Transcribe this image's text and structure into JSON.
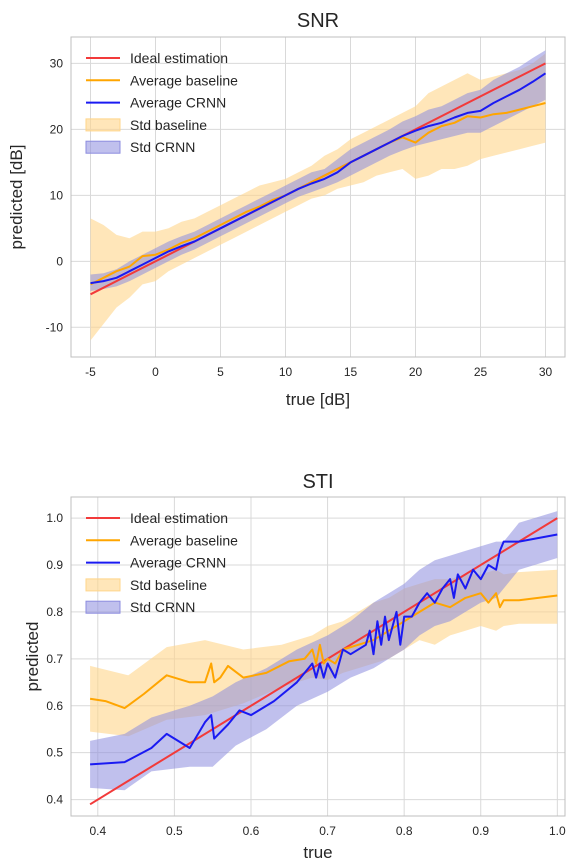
{
  "chart_data": [
    {
      "type": "line",
      "title": "SNR",
      "xlabel": "true [dB]",
      "ylabel": "predicted [dB]",
      "xlim": [
        -6.5,
        31.5
      ],
      "ylim": [
        -14.5,
        34
      ],
      "xticks": [
        -5,
        0,
        5,
        10,
        15,
        20,
        25,
        30
      ],
      "yticks": [
        -10,
        0,
        10,
        20,
        30
      ],
      "grid": true,
      "legend_position": "top-left",
      "colors": {
        "ideal": "#f23a3a",
        "baseline": "#ffa500",
        "crnn": "#1a1af2",
        "std_baseline": "#ffd58a",
        "std_crnn": "#8c8cdf"
      },
      "series": [
        {
          "name": "Ideal estimation",
          "kind": "line",
          "color": "#f23a3a",
          "x": [
            -5,
            30
          ],
          "y": [
            -5,
            30
          ]
        },
        {
          "name": "Average baseline",
          "kind": "line",
          "color": "#ffa500",
          "x": [
            -5,
            -4,
            -3,
            -2,
            -1,
            0,
            1,
            2,
            3,
            4,
            5,
            6,
            7,
            8,
            9,
            10,
            11,
            12,
            13,
            14,
            15,
            16,
            17,
            18,
            19,
            20,
            21,
            22,
            23,
            24,
            25,
            26,
            27,
            28,
            29,
            30
          ],
          "y": [
            -3.5,
            -2.5,
            -1.5,
            -0.8,
            0.8,
            1.0,
            1.8,
            2.8,
            3.5,
            4.5,
            5.5,
            6.5,
            7.5,
            8.3,
            9.3,
            10.0,
            11.0,
            12.0,
            13.0,
            14.0,
            15.0,
            16.0,
            17.0,
            18.0,
            18.8,
            18.0,
            19.5,
            20.5,
            21.0,
            22.0,
            21.8,
            22.3,
            22.5,
            23.0,
            23.5,
            24.0
          ]
        },
        {
          "name": "Average CRNN",
          "kind": "line",
          "color": "#1a1af2",
          "x": [
            -5,
            -4,
            -3,
            -2,
            -1,
            0,
            1,
            2,
            3,
            4,
            5,
            6,
            7,
            8,
            9,
            10,
            11,
            12,
            13,
            14,
            15,
            16,
            17,
            18,
            19,
            20,
            21,
            22,
            23,
            24,
            25,
            26,
            27,
            28,
            29,
            30
          ],
          "y": [
            -3.3,
            -3.0,
            -2.5,
            -1.5,
            -0.5,
            0.5,
            1.5,
            2.3,
            3.0,
            4.0,
            5.0,
            6.0,
            7.0,
            8.0,
            9.0,
            10.0,
            11.0,
            11.8,
            12.5,
            13.5,
            15.0,
            16.0,
            17.0,
            18.0,
            19.0,
            19.8,
            20.5,
            21.0,
            21.8,
            22.5,
            22.8,
            24.0,
            25.0,
            26.0,
            27.2,
            28.5
          ]
        },
        {
          "name": "Std baseline",
          "kind": "band",
          "color": "#ffd58a",
          "x": [
            -5,
            -4,
            -3,
            -2,
            -1,
            0,
            1,
            2,
            3,
            4,
            5,
            6,
            7,
            8,
            9,
            10,
            11,
            12,
            13,
            14,
            15,
            16,
            17,
            18,
            19,
            20,
            21,
            22,
            23,
            24,
            25,
            26,
            27,
            28,
            29,
            30
          ],
          "lower": [
            -12.0,
            -9.5,
            -7.0,
            -5.5,
            -3.5,
            -3.0,
            -1.5,
            -0.5,
            0.5,
            1.5,
            2.5,
            3.5,
            4.5,
            5.5,
            6.5,
            7.5,
            8.5,
            9.5,
            10.0,
            11.0,
            11.5,
            12.0,
            13.0,
            13.5,
            14.0,
            12.5,
            13.0,
            14.0,
            14.0,
            14.5,
            15.5,
            16.0,
            16.5,
            17.0,
            17.5,
            18.0
          ],
          "upper": [
            6.5,
            5.5,
            4.0,
            3.5,
            4.5,
            4.5,
            5.0,
            6.0,
            6.5,
            7.5,
            8.5,
            9.5,
            10.5,
            11.5,
            12.0,
            12.5,
            13.5,
            14.5,
            16.0,
            17.0,
            18.5,
            19.5,
            20.5,
            21.5,
            22.5,
            23.5,
            25.5,
            26.5,
            27.5,
            28.5,
            27.5,
            28.0,
            28.5,
            29.0,
            30.0,
            31.5
          ]
        },
        {
          "name": "Std CRNN",
          "kind": "band",
          "color": "#8c8cdf",
          "x": [
            -5,
            -4,
            -3,
            -2,
            -1,
            0,
            1,
            2,
            3,
            4,
            5,
            6,
            7,
            8,
            9,
            10,
            11,
            12,
            13,
            14,
            15,
            16,
            17,
            18,
            19,
            20,
            21,
            22,
            23,
            24,
            25,
            26,
            27,
            28,
            29,
            30
          ],
          "lower": [
            -4.5,
            -4.2,
            -3.8,
            -3.0,
            -2.0,
            -1.0,
            0.0,
            1.0,
            1.8,
            2.8,
            3.8,
            4.8,
            5.8,
            6.8,
            7.8,
            8.8,
            9.8,
            10.5,
            11.2,
            12.0,
            13.0,
            14.0,
            15.0,
            16.0,
            16.8,
            17.5,
            18.0,
            18.5,
            19.0,
            19.5,
            19.5,
            20.5,
            21.5,
            22.5,
            23.5,
            24.5
          ],
          "upper": [
            -2.0,
            -1.8,
            -1.2,
            0.0,
            1.0,
            2.0,
            3.0,
            3.8,
            4.5,
            5.5,
            6.5,
            7.5,
            8.5,
            9.5,
            10.5,
            11.5,
            12.5,
            13.5,
            14.0,
            15.5,
            17.0,
            18.0,
            19.0,
            20.0,
            21.2,
            22.0,
            23.0,
            23.5,
            24.5,
            25.5,
            26.0,
            27.5,
            28.5,
            29.5,
            30.8,
            32.0
          ]
        }
      ]
    },
    {
      "type": "line",
      "title": "STI",
      "xlabel": "true",
      "ylabel": "predicted",
      "xlim": [
        0.365,
        1.01
      ],
      "ylim": [
        0.365,
        1.045
      ],
      "xticks": [
        0.4,
        0.5,
        0.6,
        0.7,
        0.8,
        0.9,
        1.0
      ],
      "xtick_labels": [
        "0.4",
        "0.5",
        "0.6",
        "0.7",
        "0.8",
        "0.9",
        "1.0"
      ],
      "yticks": [
        0.4,
        0.5,
        0.6,
        0.7,
        0.8,
        0.9,
        1.0
      ],
      "ytick_labels": [
        "0.4",
        "0.5",
        "0.6",
        "0.7",
        "0.8",
        "0.9",
        "1.0"
      ],
      "grid": true,
      "legend_position": "top-left",
      "colors": {
        "ideal": "#f23a3a",
        "baseline": "#ffa500",
        "crnn": "#1a1af2",
        "std_baseline": "#ffd58a",
        "std_crnn": "#8c8cdf"
      },
      "series": [
        {
          "name": "Ideal estimation",
          "kind": "line",
          "color": "#f23a3a",
          "x": [
            0.39,
            1.0
          ],
          "y": [
            0.39,
            1.0
          ]
        },
        {
          "name": "Average baseline",
          "kind": "line",
          "color": "#ffa500",
          "x": [
            0.39,
            0.41,
            0.435,
            0.46,
            0.49,
            0.52,
            0.54,
            0.548,
            0.552,
            0.56,
            0.57,
            0.59,
            0.62,
            0.65,
            0.67,
            0.68,
            0.685,
            0.69,
            0.695,
            0.7,
            0.71,
            0.72,
            0.74,
            0.76,
            0.78,
            0.8,
            0.82,
            0.84,
            0.86,
            0.88,
            0.9,
            0.91,
            0.92,
            0.925,
            0.93,
            0.95,
            1.0
          ],
          "y": [
            0.615,
            0.61,
            0.595,
            0.625,
            0.665,
            0.65,
            0.65,
            0.69,
            0.65,
            0.66,
            0.685,
            0.66,
            0.67,
            0.695,
            0.7,
            0.72,
            0.69,
            0.73,
            0.69,
            0.7,
            0.69,
            0.72,
            0.73,
            0.74,
            0.76,
            0.78,
            0.8,
            0.82,
            0.81,
            0.83,
            0.84,
            0.82,
            0.84,
            0.81,
            0.825,
            0.825,
            0.835
          ]
        },
        {
          "name": "Average CRNN",
          "kind": "line",
          "color": "#1a1af2",
          "x": [
            0.39,
            0.435,
            0.47,
            0.49,
            0.52,
            0.54,
            0.548,
            0.552,
            0.57,
            0.585,
            0.6,
            0.63,
            0.66,
            0.68,
            0.685,
            0.69,
            0.695,
            0.7,
            0.71,
            0.72,
            0.73,
            0.75,
            0.755,
            0.76,
            0.765,
            0.77,
            0.775,
            0.78,
            0.79,
            0.795,
            0.8,
            0.81,
            0.82,
            0.83,
            0.84,
            0.85,
            0.86,
            0.865,
            0.87,
            0.88,
            0.89,
            0.9,
            0.91,
            0.92,
            0.925,
            0.93,
            0.95,
            1.0
          ],
          "y": [
            0.475,
            0.48,
            0.51,
            0.54,
            0.51,
            0.565,
            0.58,
            0.53,
            0.56,
            0.59,
            0.58,
            0.61,
            0.65,
            0.69,
            0.66,
            0.69,
            0.66,
            0.69,
            0.66,
            0.72,
            0.71,
            0.73,
            0.76,
            0.71,
            0.78,
            0.73,
            0.79,
            0.74,
            0.8,
            0.73,
            0.79,
            0.79,
            0.82,
            0.84,
            0.82,
            0.85,
            0.87,
            0.83,
            0.88,
            0.85,
            0.89,
            0.87,
            0.9,
            0.89,
            0.93,
            0.95,
            0.95,
            0.965
          ]
        },
        {
          "name": "Std baseline",
          "kind": "band",
          "color": "#ffd58a",
          "x": [
            0.39,
            0.44,
            0.49,
            0.54,
            0.59,
            0.64,
            0.68,
            0.7,
            0.72,
            0.74,
            0.76,
            0.78,
            0.8,
            0.82,
            0.84,
            0.86,
            0.88,
            0.9,
            0.92,
            0.93,
            0.95,
            1.0
          ],
          "lower": [
            0.545,
            0.535,
            0.57,
            0.58,
            0.605,
            0.64,
            0.66,
            0.655,
            0.67,
            0.68,
            0.69,
            0.7,
            0.72,
            0.74,
            0.73,
            0.75,
            0.76,
            0.77,
            0.76,
            0.77,
            0.775,
            0.775
          ],
          "upper": [
            0.685,
            0.665,
            0.725,
            0.74,
            0.72,
            0.73,
            0.75,
            0.77,
            0.78,
            0.8,
            0.82,
            0.83,
            0.85,
            0.86,
            0.87,
            0.87,
            0.88,
            0.88,
            0.89,
            0.88,
            0.885,
            0.89
          ]
        },
        {
          "name": "Std CRNN",
          "kind": "band",
          "color": "#8c8cdf",
          "x": [
            0.39,
            0.435,
            0.47,
            0.52,
            0.55,
            0.58,
            0.62,
            0.66,
            0.7,
            0.73,
            0.76,
            0.78,
            0.8,
            0.82,
            0.84,
            0.86,
            0.88,
            0.9,
            0.92,
            0.93,
            0.95,
            1.0
          ],
          "lower": [
            0.425,
            0.42,
            0.46,
            0.47,
            0.47,
            0.515,
            0.55,
            0.6,
            0.63,
            0.66,
            0.68,
            0.7,
            0.72,
            0.75,
            0.77,
            0.78,
            0.8,
            0.82,
            0.83,
            0.85,
            0.89,
            0.915
          ],
          "upper": [
            0.525,
            0.54,
            0.575,
            0.6,
            0.62,
            0.65,
            0.68,
            0.72,
            0.75,
            0.78,
            0.82,
            0.84,
            0.86,
            0.89,
            0.91,
            0.92,
            0.93,
            0.94,
            0.95,
            0.95,
            0.99,
            1.015
          ]
        }
      ]
    }
  ]
}
